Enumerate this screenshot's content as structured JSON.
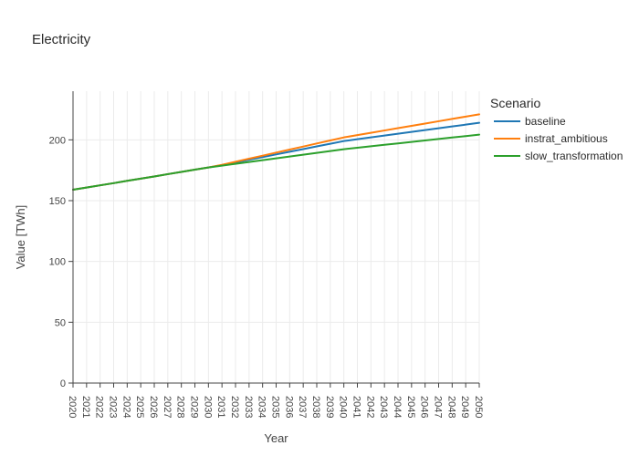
{
  "chart_data": {
    "type": "line",
    "title": "Electricity",
    "xlabel": "Year",
    "ylabel": "Value [TWh]",
    "xlim": [
      2020,
      2050
    ],
    "ylim": [
      0,
      240
    ],
    "yticks": [
      0,
      50,
      100,
      150,
      200
    ],
    "grid": true,
    "legend_title": "Scenario",
    "legend_position": "right",
    "x": [
      2020,
      2021,
      2022,
      2023,
      2024,
      2025,
      2026,
      2027,
      2028,
      2029,
      2030,
      2031,
      2032,
      2033,
      2034,
      2035,
      2036,
      2037,
      2038,
      2039,
      2040,
      2041,
      2042,
      2043,
      2044,
      2045,
      2046,
      2047,
      2048,
      2049,
      2050
    ],
    "series": [
      {
        "name": "baseline",
        "color": "#1f77b4",
        "values": [
          159.0,
          160.8,
          162.6,
          164.4,
          166.3,
          168.1,
          169.9,
          171.8,
          173.6,
          175.5,
          177.3,
          179.2,
          181.4,
          183.6,
          185.8,
          188.0,
          190.2,
          192.4,
          194.6,
          196.8,
          199.0,
          200.5,
          202.0,
          203.5,
          205.0,
          206.5,
          208.0,
          209.5,
          211.0,
          212.5,
          214.0
        ]
      },
      {
        "name": "instrat_ambitious",
        "color": "#ff7f0e",
        "values": [
          159.0,
          160.8,
          162.6,
          164.4,
          166.3,
          168.1,
          169.9,
          171.8,
          173.6,
          175.5,
          177.3,
          179.5,
          182.0,
          184.5,
          187.0,
          189.5,
          192.0,
          194.5,
          197.0,
          199.5,
          202.0,
          203.9,
          205.8,
          207.7,
          209.6,
          211.5,
          213.4,
          215.3,
          217.2,
          219.1,
          221.0
        ]
      },
      {
        "name": "slow_transformation",
        "color": "#2ca02c",
        "values": [
          159.0,
          160.8,
          162.6,
          164.4,
          166.3,
          168.1,
          169.9,
          171.8,
          173.6,
          175.5,
          177.3,
          178.8,
          180.3,
          181.8,
          183.3,
          184.8,
          186.3,
          187.8,
          189.3,
          190.8,
          192.3,
          193.5,
          194.7,
          195.9,
          197.1,
          198.3,
          199.5,
          200.7,
          201.9,
          203.1,
          204.3
        ]
      }
    ]
  }
}
